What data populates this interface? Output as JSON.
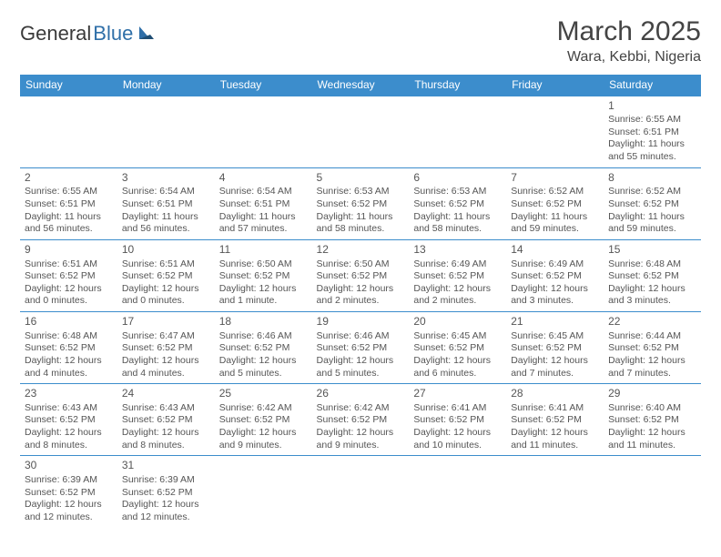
{
  "logo": {
    "text1": "General",
    "text2": "Blue"
  },
  "title": "March 2025",
  "location": "Wara, Kebbi, Nigeria",
  "colors": {
    "header_bg": "#3c8dcc",
    "header_text": "#ffffff",
    "border": "#3c8dcc",
    "body_text": "#555555",
    "logo_blue": "#2f6fa8"
  },
  "weekdays": [
    "Sunday",
    "Monday",
    "Tuesday",
    "Wednesday",
    "Thursday",
    "Friday",
    "Saturday"
  ],
  "grid": [
    [
      null,
      null,
      null,
      null,
      null,
      null,
      {
        "n": "1",
        "sr": "Sunrise: 6:55 AM",
        "ss": "Sunset: 6:51 PM",
        "dl": "Daylight: 11 hours and 55 minutes."
      }
    ],
    [
      {
        "n": "2",
        "sr": "Sunrise: 6:55 AM",
        "ss": "Sunset: 6:51 PM",
        "dl": "Daylight: 11 hours and 56 minutes."
      },
      {
        "n": "3",
        "sr": "Sunrise: 6:54 AM",
        "ss": "Sunset: 6:51 PM",
        "dl": "Daylight: 11 hours and 56 minutes."
      },
      {
        "n": "4",
        "sr": "Sunrise: 6:54 AM",
        "ss": "Sunset: 6:51 PM",
        "dl": "Daylight: 11 hours and 57 minutes."
      },
      {
        "n": "5",
        "sr": "Sunrise: 6:53 AM",
        "ss": "Sunset: 6:52 PM",
        "dl": "Daylight: 11 hours and 58 minutes."
      },
      {
        "n": "6",
        "sr": "Sunrise: 6:53 AM",
        "ss": "Sunset: 6:52 PM",
        "dl": "Daylight: 11 hours and 58 minutes."
      },
      {
        "n": "7",
        "sr": "Sunrise: 6:52 AM",
        "ss": "Sunset: 6:52 PM",
        "dl": "Daylight: 11 hours and 59 minutes."
      },
      {
        "n": "8",
        "sr": "Sunrise: 6:52 AM",
        "ss": "Sunset: 6:52 PM",
        "dl": "Daylight: 11 hours and 59 minutes."
      }
    ],
    [
      {
        "n": "9",
        "sr": "Sunrise: 6:51 AM",
        "ss": "Sunset: 6:52 PM",
        "dl": "Daylight: 12 hours and 0 minutes."
      },
      {
        "n": "10",
        "sr": "Sunrise: 6:51 AM",
        "ss": "Sunset: 6:52 PM",
        "dl": "Daylight: 12 hours and 0 minutes."
      },
      {
        "n": "11",
        "sr": "Sunrise: 6:50 AM",
        "ss": "Sunset: 6:52 PM",
        "dl": "Daylight: 12 hours and 1 minute."
      },
      {
        "n": "12",
        "sr": "Sunrise: 6:50 AM",
        "ss": "Sunset: 6:52 PM",
        "dl": "Daylight: 12 hours and 2 minutes."
      },
      {
        "n": "13",
        "sr": "Sunrise: 6:49 AM",
        "ss": "Sunset: 6:52 PM",
        "dl": "Daylight: 12 hours and 2 minutes."
      },
      {
        "n": "14",
        "sr": "Sunrise: 6:49 AM",
        "ss": "Sunset: 6:52 PM",
        "dl": "Daylight: 12 hours and 3 minutes."
      },
      {
        "n": "15",
        "sr": "Sunrise: 6:48 AM",
        "ss": "Sunset: 6:52 PM",
        "dl": "Daylight: 12 hours and 3 minutes."
      }
    ],
    [
      {
        "n": "16",
        "sr": "Sunrise: 6:48 AM",
        "ss": "Sunset: 6:52 PM",
        "dl": "Daylight: 12 hours and 4 minutes."
      },
      {
        "n": "17",
        "sr": "Sunrise: 6:47 AM",
        "ss": "Sunset: 6:52 PM",
        "dl": "Daylight: 12 hours and 4 minutes."
      },
      {
        "n": "18",
        "sr": "Sunrise: 6:46 AM",
        "ss": "Sunset: 6:52 PM",
        "dl": "Daylight: 12 hours and 5 minutes."
      },
      {
        "n": "19",
        "sr": "Sunrise: 6:46 AM",
        "ss": "Sunset: 6:52 PM",
        "dl": "Daylight: 12 hours and 5 minutes."
      },
      {
        "n": "20",
        "sr": "Sunrise: 6:45 AM",
        "ss": "Sunset: 6:52 PM",
        "dl": "Daylight: 12 hours and 6 minutes."
      },
      {
        "n": "21",
        "sr": "Sunrise: 6:45 AM",
        "ss": "Sunset: 6:52 PM",
        "dl": "Daylight: 12 hours and 7 minutes."
      },
      {
        "n": "22",
        "sr": "Sunrise: 6:44 AM",
        "ss": "Sunset: 6:52 PM",
        "dl": "Daylight: 12 hours and 7 minutes."
      }
    ],
    [
      {
        "n": "23",
        "sr": "Sunrise: 6:43 AM",
        "ss": "Sunset: 6:52 PM",
        "dl": "Daylight: 12 hours and 8 minutes."
      },
      {
        "n": "24",
        "sr": "Sunrise: 6:43 AM",
        "ss": "Sunset: 6:52 PM",
        "dl": "Daylight: 12 hours and 8 minutes."
      },
      {
        "n": "25",
        "sr": "Sunrise: 6:42 AM",
        "ss": "Sunset: 6:52 PM",
        "dl": "Daylight: 12 hours and 9 minutes."
      },
      {
        "n": "26",
        "sr": "Sunrise: 6:42 AM",
        "ss": "Sunset: 6:52 PM",
        "dl": "Daylight: 12 hours and 9 minutes."
      },
      {
        "n": "27",
        "sr": "Sunrise: 6:41 AM",
        "ss": "Sunset: 6:52 PM",
        "dl": "Daylight: 12 hours and 10 minutes."
      },
      {
        "n": "28",
        "sr": "Sunrise: 6:41 AM",
        "ss": "Sunset: 6:52 PM",
        "dl": "Daylight: 12 hours and 11 minutes."
      },
      {
        "n": "29",
        "sr": "Sunrise: 6:40 AM",
        "ss": "Sunset: 6:52 PM",
        "dl": "Daylight: 12 hours and 11 minutes."
      }
    ],
    [
      {
        "n": "30",
        "sr": "Sunrise: 6:39 AM",
        "ss": "Sunset: 6:52 PM",
        "dl": "Daylight: 12 hours and 12 minutes."
      },
      {
        "n": "31",
        "sr": "Sunrise: 6:39 AM",
        "ss": "Sunset: 6:52 PM",
        "dl": "Daylight: 12 hours and 12 minutes."
      },
      null,
      null,
      null,
      null,
      null
    ]
  ]
}
